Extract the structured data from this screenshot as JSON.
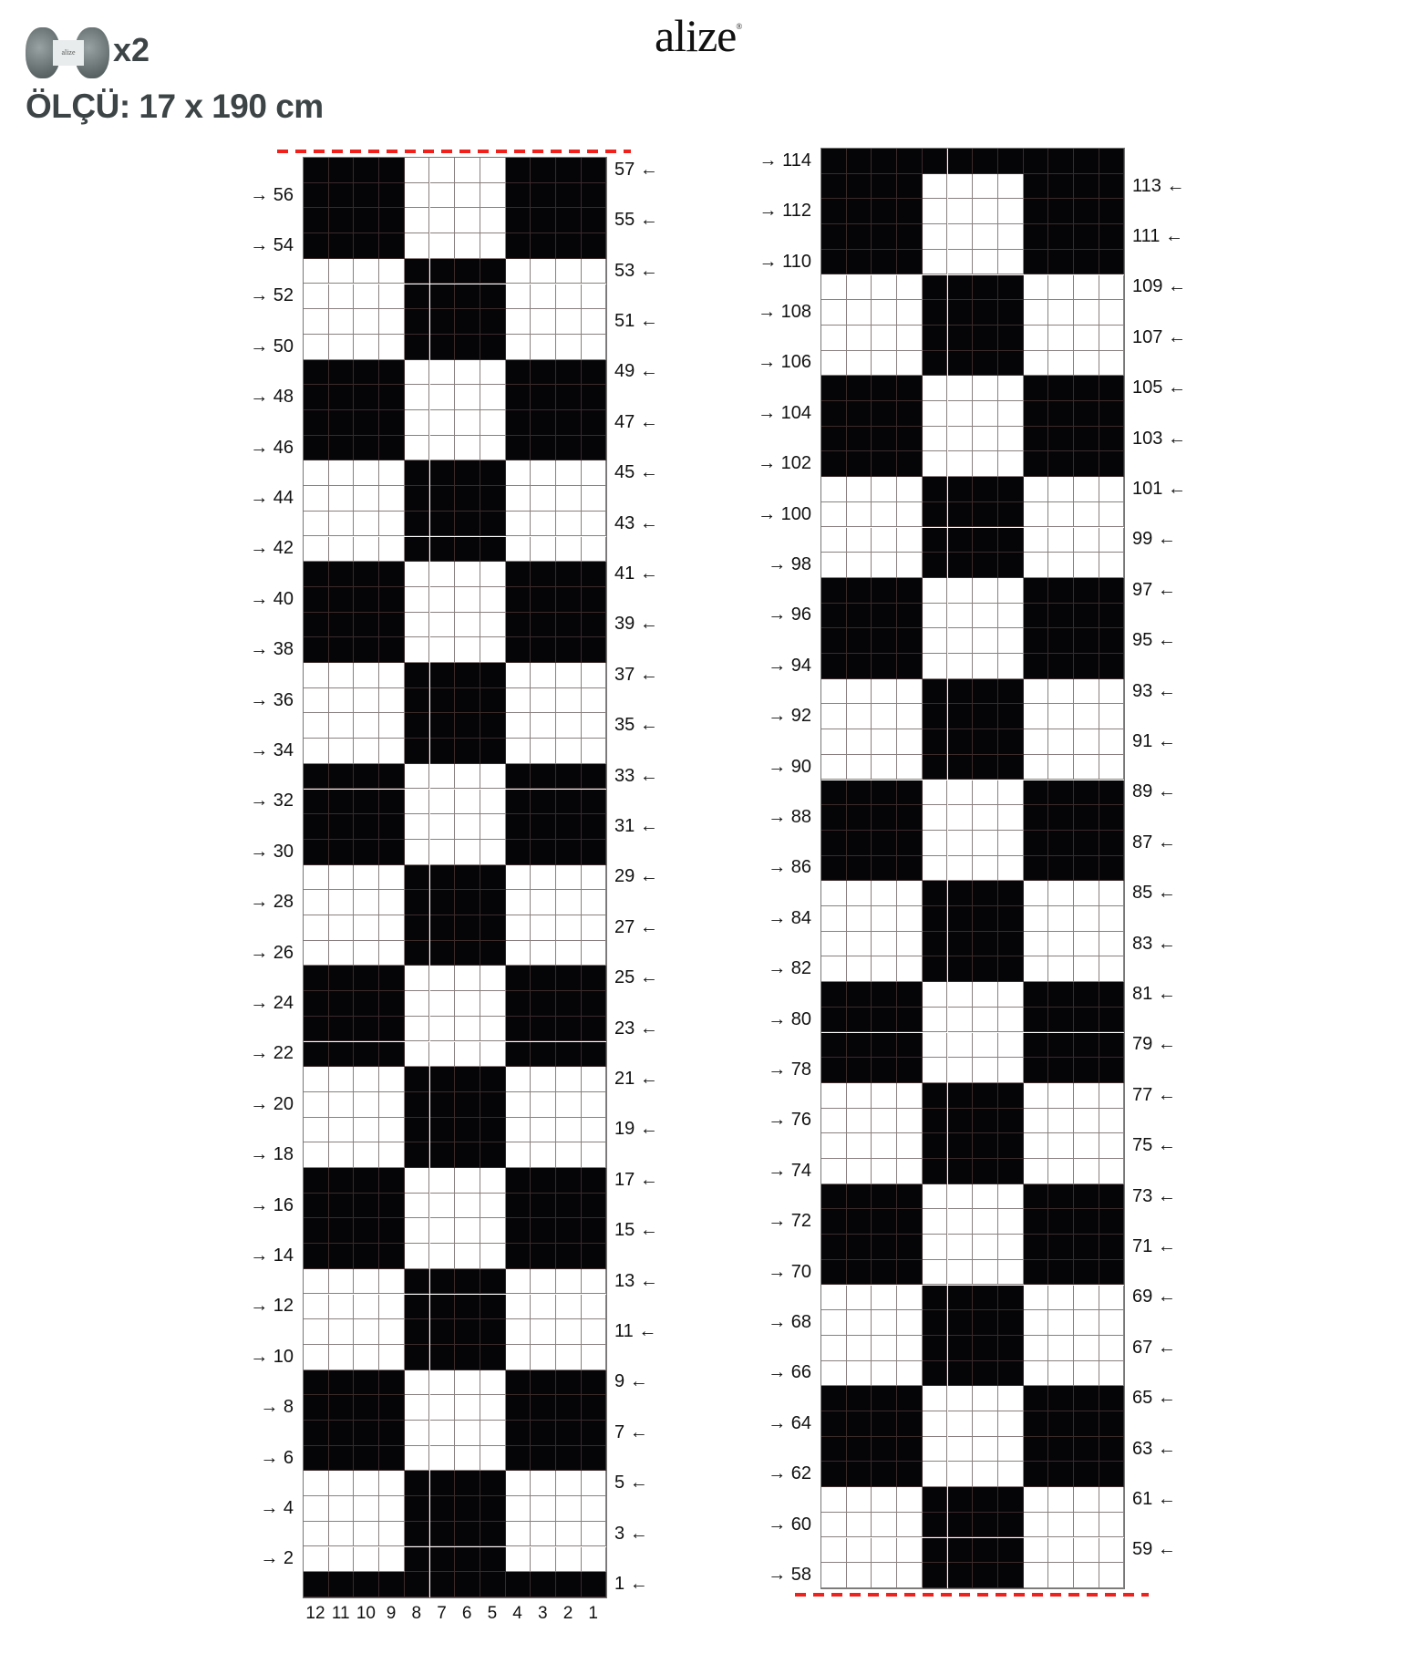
{
  "brand": {
    "logo_text": "alize",
    "registered": "®"
  },
  "header": {
    "yarn_label": "alize",
    "quantity": "x2",
    "size": "ÖLÇÜ: 17 x 190 cm"
  },
  "colors": {
    "filled": "#050508",
    "empty": "#ffffff",
    "grid_line": "#8a8080",
    "dash": "#f0201c",
    "text": "#3d4446"
  },
  "legend_codes": {
    "S": "sides filled (cols 1-4, 9-12)",
    "C": "center filled (cols 5-8)",
    "A": "all filled"
  },
  "charts": [
    {
      "rows_top_to_bottom": "SSSSCCCCSSSSCCCCSSSSCCCCSSSSCCCCSSSSCCCCSSSSCCCCSSSSCCCCA",
      "first_row_bottom": 1,
      "last_row_top": 57,
      "cut_line": "top",
      "column_numbers": [
        "12",
        "11",
        "10",
        "9",
        "8",
        "7",
        "6",
        "5",
        "4",
        "3",
        "2",
        "1"
      ]
    },
    {
      "rows_top_to_bottom": "ASSSSCCCCSSSSCCCCSSSSCCCCSSSSCCCCSSSSCCCCSSSSCCCCSSSSCCCC",
      "first_row_bottom": 58,
      "last_row_top": 114,
      "cut_line": "bottom"
    }
  ],
  "arrows": {
    "right": "→",
    "left": "←"
  }
}
